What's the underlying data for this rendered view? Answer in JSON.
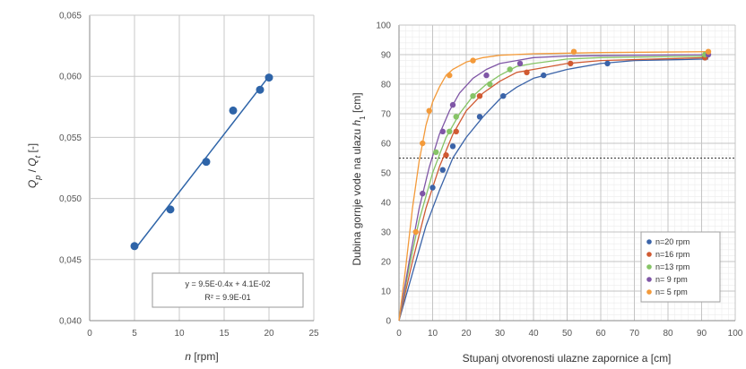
{
  "chart_data": [
    {
      "type": "scatter",
      "xlabel_var": "n",
      "xlabel_unit": "[rpm]",
      "ylabel_var1": "Q",
      "ylabel_sub1": "p",
      "ylabel_sep": " / ",
      "ylabel_var2": "Q",
      "ylabel_sub2": "t",
      "ylabel_unit": " [-]",
      "xlim": [
        0,
        25
      ],
      "ylim": [
        0.04,
        0.065
      ],
      "xticks": [
        0,
        5,
        10,
        15,
        20,
        25
      ],
      "yticks": [
        "0,040",
        "0,045",
        "0,050",
        "0,055",
        "0,060",
        "0,065"
      ],
      "grid": true,
      "points": [
        {
          "x": 5,
          "y": 0.0461
        },
        {
          "x": 9,
          "y": 0.0491
        },
        {
          "x": 13,
          "y": 0.053
        },
        {
          "x": 16,
          "y": 0.0572
        },
        {
          "x": 19,
          "y": 0.0589
        },
        {
          "x": 20,
          "y": 0.0599
        }
      ],
      "trendline": {
        "x": [
          5,
          20
        ],
        "y": [
          0.0458,
          0.06
        ]
      },
      "equation_line1": "y = 9.5E-0.4x + 4.1E-02",
      "equation_line2": "R² = 9.9E-01",
      "point_color": "#2e64a8",
      "line_color": "#2e64a8"
    },
    {
      "type": "scatter",
      "xlabel": "Stupanj otvorenosti ulazne zapornice a [cm]",
      "ylabel_main": "Dubina gornje vode na ulazu ",
      "ylabel_var": "h",
      "ylabel_sub": "1",
      "ylabel_unit": " [cm]",
      "xlim": [
        0,
        100
      ],
      "ylim": [
        0,
        100
      ],
      "xticks": [
        0,
        10,
        20,
        30,
        40,
        50,
        60,
        70,
        80,
        90,
        100
      ],
      "yticks": [
        0,
        10,
        20,
        30,
        40,
        50,
        60,
        70,
        80,
        90,
        100
      ],
      "grid": true,
      "reference_line_y": 55,
      "legend_position": "bottom-right",
      "series": [
        {
          "name": "n=20 rpm",
          "color": "#3a63a8",
          "points": [
            [
              10,
              45
            ],
            [
              13,
              51
            ],
            [
              16,
              59
            ],
            [
              24,
              69
            ],
            [
              31,
              76
            ],
            [
              43,
              83
            ],
            [
              62,
              87
            ],
            [
              91,
              89
            ]
          ],
          "curve": [
            [
              0,
              0
            ],
            [
              4,
              16
            ],
            [
              8,
              32
            ],
            [
              12,
              44
            ],
            [
              16,
              55
            ],
            [
              20,
              62
            ],
            [
              25,
              69
            ],
            [
              30,
              75
            ],
            [
              35,
              79
            ],
            [
              40,
              82
            ],
            [
              50,
              85
            ],
            [
              60,
              87
            ],
            [
              70,
              88
            ],
            [
              92,
              88.5
            ]
          ]
        },
        {
          "name": "n=16 rpm",
          "color": "#d05a32",
          "points": [
            [
              14,
              56
            ],
            [
              17,
              64
            ],
            [
              24,
              76
            ],
            [
              38,
              84
            ],
            [
              51,
              87
            ],
            [
              91,
              89
            ]
          ],
          "curve": [
            [
              0,
              0
            ],
            [
              4,
              20
            ],
            [
              8,
              38
            ],
            [
              12,
              52
            ],
            [
              16,
              63
            ],
            [
              20,
              71
            ],
            [
              25,
              77
            ],
            [
              30,
              81
            ],
            [
              35,
              84
            ],
            [
              40,
              85
            ],
            [
              50,
              87
            ],
            [
              60,
              88
            ],
            [
              92,
              89
            ]
          ]
        },
        {
          "name": "n=13 rpm",
          "color": "#86c466",
          "points": [
            [
              11,
              57
            ],
            [
              15,
              64
            ],
            [
              17,
              69
            ],
            [
              22,
              76
            ],
            [
              27,
              80
            ],
            [
              33,
              85
            ],
            [
              91,
              90
            ]
          ],
          "curve": [
            [
              0,
              0
            ],
            [
              3,
              18
            ],
            [
              6,
              34
            ],
            [
              10,
              50
            ],
            [
              14,
              62
            ],
            [
              18,
              70
            ],
            [
              22,
              76
            ],
            [
              26,
              80
            ],
            [
              30,
              83
            ],
            [
              35,
              86
            ],
            [
              40,
              87
            ],
            [
              50,
              88.5
            ],
            [
              60,
              89
            ],
            [
              92,
              89.5
            ]
          ]
        },
        {
          "name": "n= 9 rpm",
          "color": "#7f56a6",
          "points": [
            [
              7,
              43
            ],
            [
              13,
              64
            ],
            [
              16,
              73
            ],
            [
              26,
              83
            ],
            [
              36,
              87
            ],
            [
              92,
              90
            ]
          ],
          "curve": [
            [
              0,
              0
            ],
            [
              3,
              20
            ],
            [
              6,
              38
            ],
            [
              9,
              52
            ],
            [
              12,
              63
            ],
            [
              15,
              71
            ],
            [
              18,
              77
            ],
            [
              22,
              82
            ],
            [
              26,
              85
            ],
            [
              30,
              87
            ],
            [
              35,
              88
            ],
            [
              40,
              89
            ],
            [
              50,
              89.5
            ],
            [
              92,
              90
            ]
          ]
        },
        {
          "name": "n= 5 rpm",
          "color": "#f39a3a",
          "points": [
            [
              5,
              30
            ],
            [
              7,
              60
            ],
            [
              9,
              71
            ],
            [
              15,
              83
            ],
            [
              22,
              88
            ],
            [
              52,
              91
            ],
            [
              92,
              91
            ]
          ],
          "curve": [
            [
              0,
              0
            ],
            [
              2,
              18
            ],
            [
              4,
              38
            ],
            [
              6,
              54
            ],
            [
              8,
              66
            ],
            [
              10,
              74
            ],
            [
              12,
              79
            ],
            [
              14,
              83
            ],
            [
              16,
              85
            ],
            [
              20,
              87.5
            ],
            [
              25,
              89
            ],
            [
              30,
              89.8
            ],
            [
              40,
              90.3
            ],
            [
              60,
              90.7
            ],
            [
              92,
              91
            ]
          ]
        }
      ]
    }
  ]
}
